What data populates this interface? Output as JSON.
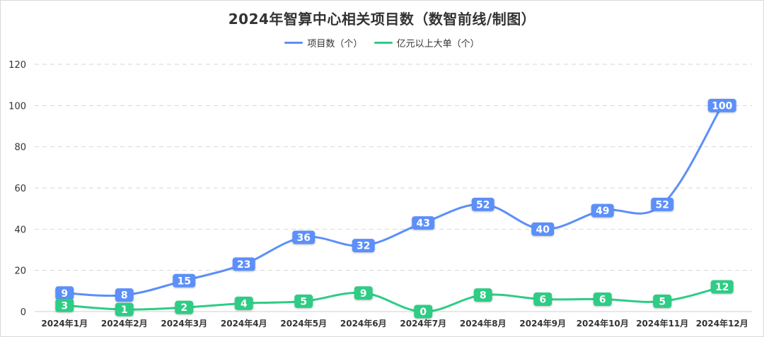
{
  "chart_data": {
    "type": "line",
    "title": "2024年智算中心相关项目数（数智前线/制图）",
    "categories": [
      "2024年1月",
      "2024年2月",
      "2024年3月",
      "2024年4月",
      "2024年5月",
      "2024年6月",
      "2024年7月",
      "2024年8月",
      "2024年9月",
      "2024年10月",
      "2024年11月",
      "2024年12月"
    ],
    "series": [
      {
        "name": "项目数（个）",
        "color": "#5b8ff9",
        "values": [
          9,
          8,
          15,
          23,
          36,
          32,
          43,
          52,
          40,
          49,
          52,
          100
        ]
      },
      {
        "name": "亿元以上大单（个）",
        "color": "#2ecc85",
        "values": [
          3,
          1,
          2,
          4,
          5,
          9,
          0,
          8,
          6,
          6,
          5,
          12
        ]
      }
    ],
    "yticks": [
      "0",
      "20",
      "40",
      "60",
      "80",
      "100",
      "120"
    ],
    "ylim": [
      0,
      120
    ],
    "grid": true,
    "smooth": true,
    "legend_position": "top-center",
    "data_labels": true
  }
}
